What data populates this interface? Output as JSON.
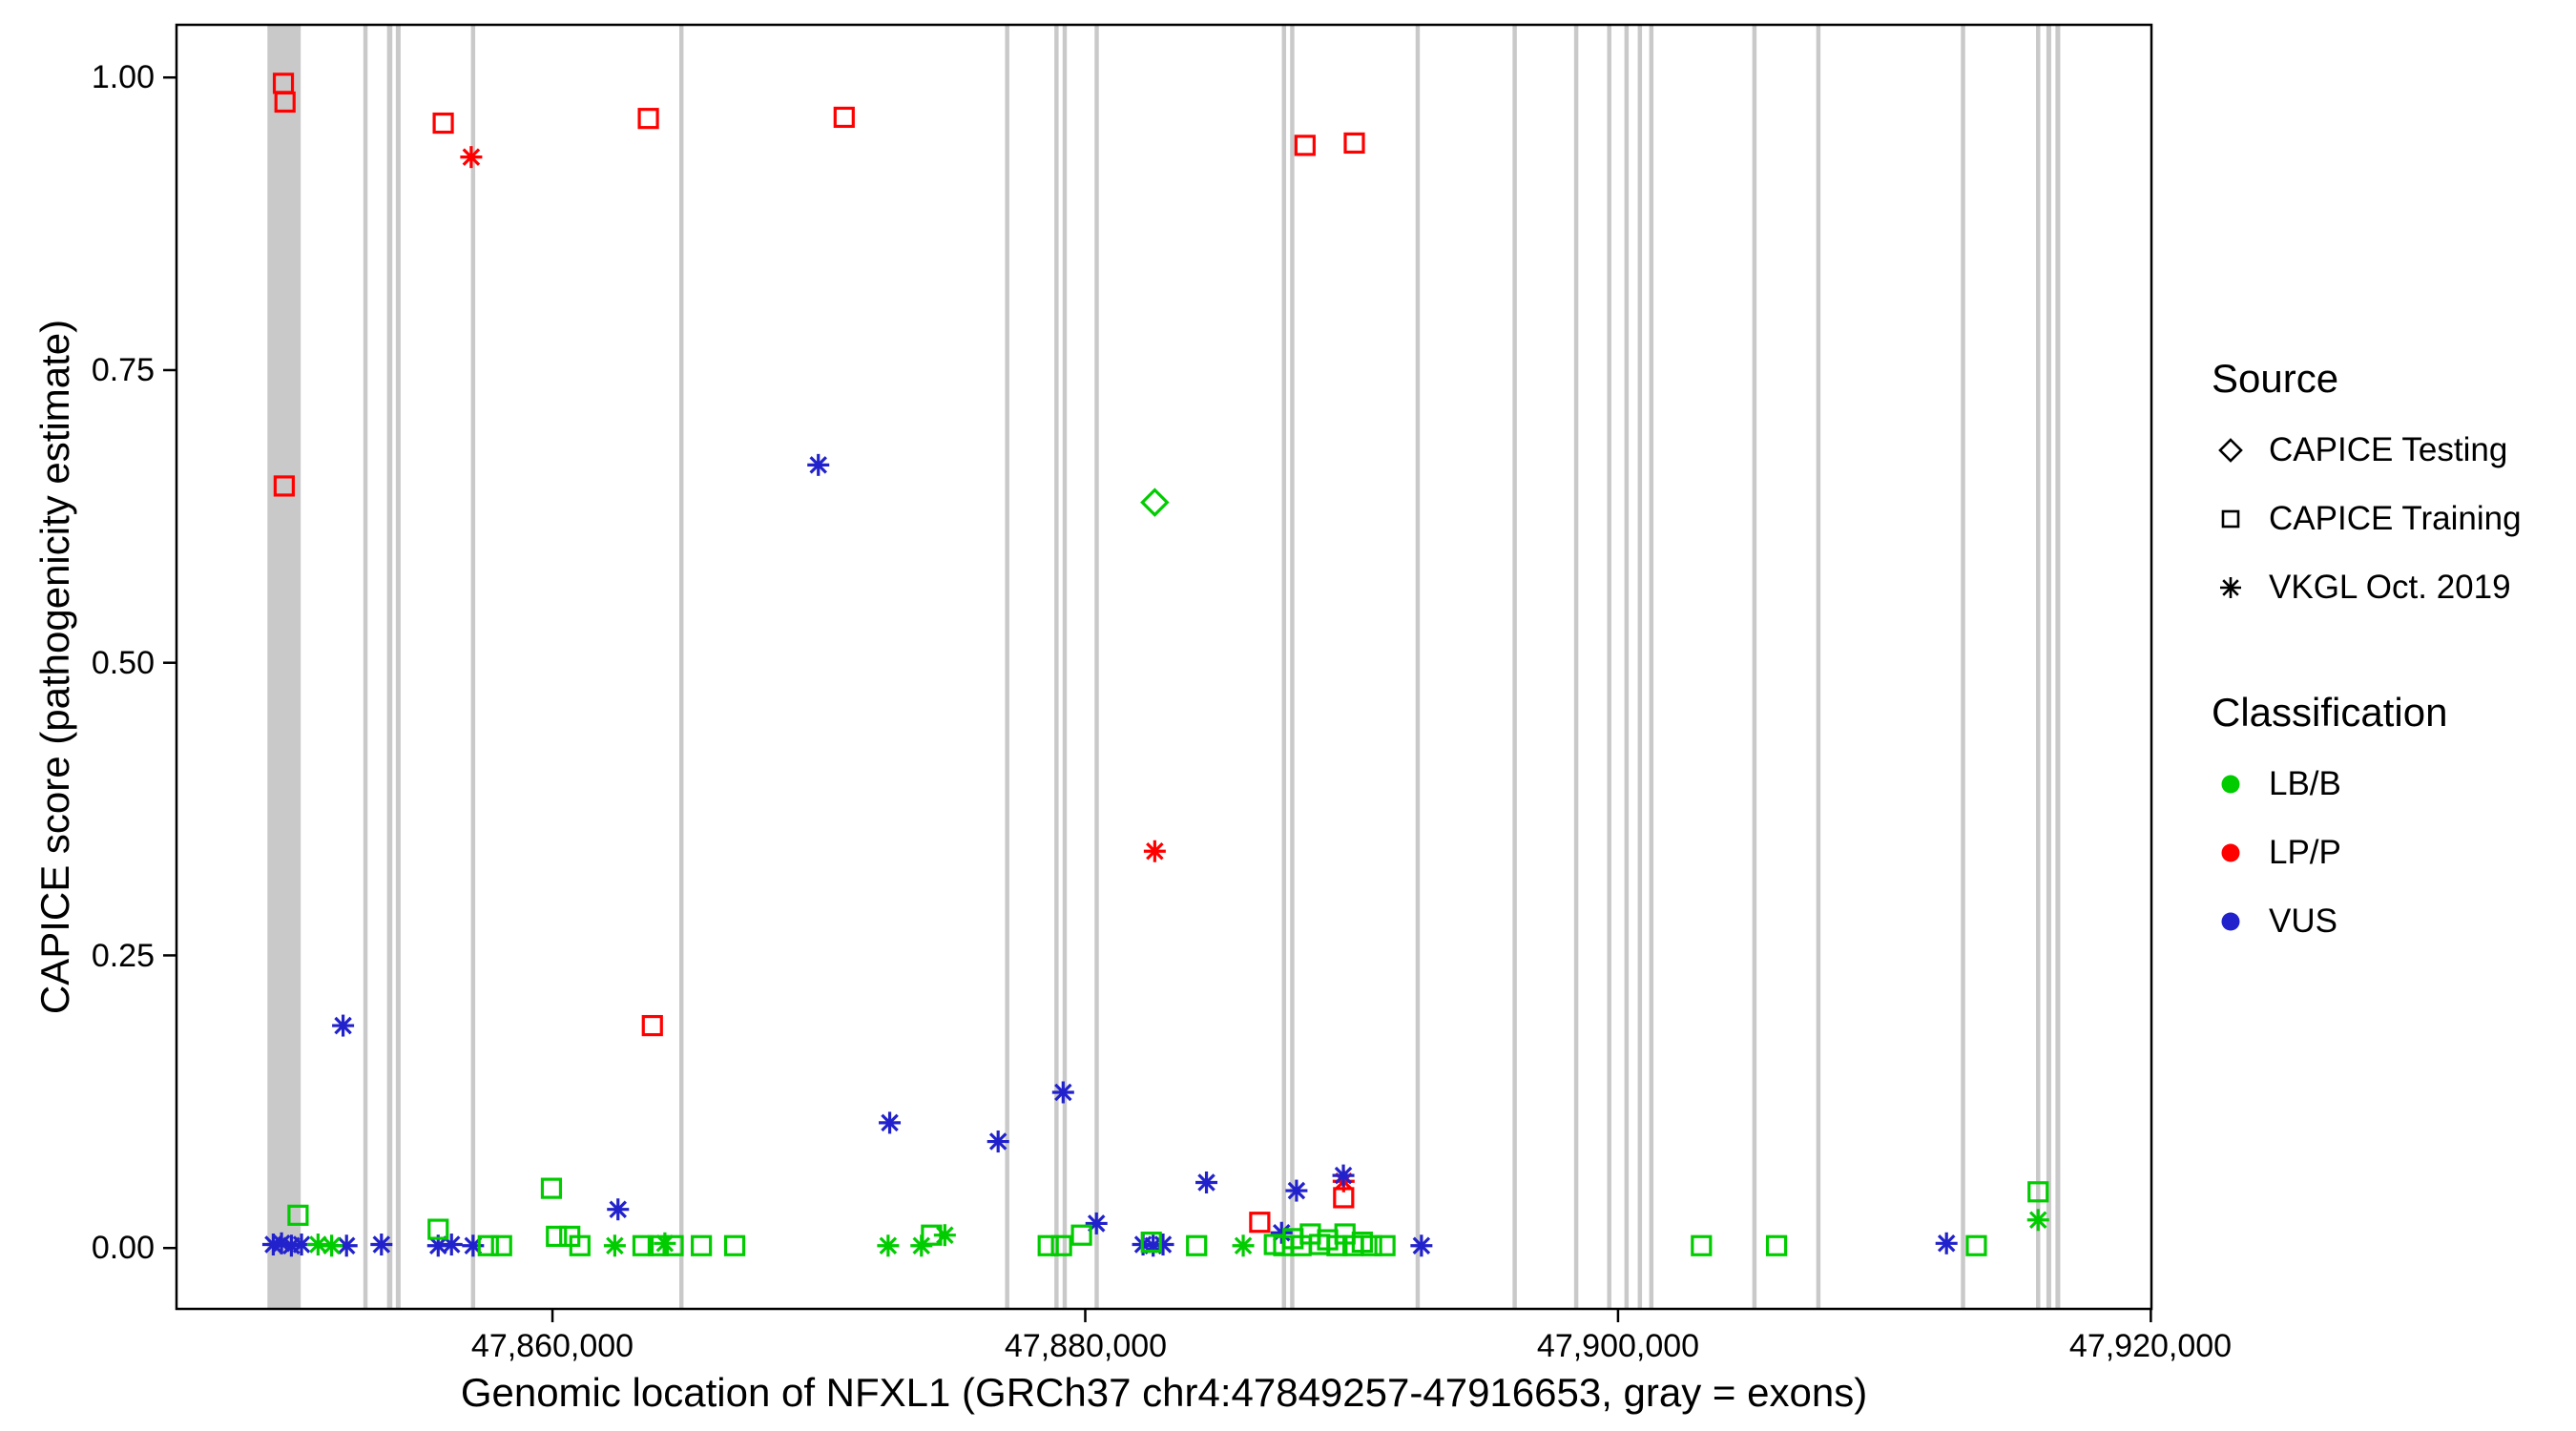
{
  "chart_data": {
    "type": "scatter",
    "title": "",
    "xlabel": "Genomic location of NFXL1 (GRCh37 chr4:47849257-47916653, gray = exons)",
    "ylabel": "CAPICE score (pathogenicity estimate)",
    "xlim": [
      47845887,
      47920023
    ],
    "ylim": [
      -0.052,
      1.045
    ],
    "x_ticks": [
      47860000,
      47880000,
      47900000,
      47920000
    ],
    "x_tick_labels": [
      "47,860,000",
      "47,880,000",
      "47,900,000",
      "47,920,000"
    ],
    "y_ticks": [
      0.0,
      0.25,
      0.5,
      0.75,
      1.0
    ],
    "y_tick_labels": [
      "0.00",
      "0.25",
      "0.50",
      "0.75",
      "1.00"
    ],
    "grid": "off",
    "legend_position": "right",
    "exon_color": "#C9C9C9",
    "exons": [
      [
        47849300,
        47850550
      ],
      [
        47852900,
        47853060
      ],
      [
        47853790,
        47853990
      ],
      [
        47854120,
        47854300
      ],
      [
        47856940,
        47857100
      ],
      [
        47864760,
        47864920
      ],
      [
        47876990,
        47877150
      ],
      [
        47878840,
        47879000
      ],
      [
        47879150,
        47879310
      ],
      [
        47880350,
        47880510
      ],
      [
        47887380,
        47887540
      ],
      [
        47887690,
        47887850
      ],
      [
        47892400,
        47892560
      ],
      [
        47896040,
        47896200
      ],
      [
        47898350,
        47898510
      ],
      [
        47899590,
        47899750
      ],
      [
        47900240,
        47900400
      ],
      [
        47900740,
        47900900
      ],
      [
        47901170,
        47901330
      ],
      [
        47905040,
        47905200
      ],
      [
        47907440,
        47907600
      ],
      [
        47912870,
        47913030
      ],
      [
        47915690,
        47915850
      ],
      [
        47916080,
        47916260
      ],
      [
        47916420,
        47916600
      ]
    ],
    "classification_colors": {
      "LB/B": "#00CC00",
      "LP/P": "#FF0000",
      "VUS": "#2222CC"
    },
    "source_shapes": {
      "CAPICE Testing": "diamond",
      "CAPICE Training": "square",
      "VKGL Oct. 2019": "asterisk"
    },
    "series": [
      {
        "source": "CAPICE Training",
        "classification": "LP/P",
        "points": [
          [
            47849900,
            0.995
          ],
          [
            47849960,
            0.979
          ],
          [
            47849930,
            0.651
          ],
          [
            47855900,
            0.961
          ],
          [
            47863600,
            0.965
          ],
          [
            47870950,
            0.966
          ],
          [
            47888250,
            0.942
          ],
          [
            47890100,
            0.944
          ],
          [
            47863750,
            0.19
          ],
          [
            47886550,
            0.022
          ],
          [
            47889700,
            0.043
          ]
        ]
      },
      {
        "source": "VKGL Oct. 2019",
        "classification": "LP/P",
        "points": [
          [
            47856950,
            0.932
          ],
          [
            47882610,
            0.339
          ],
          [
            47889700,
            0.057
          ]
        ]
      },
      {
        "source": "CAPICE Testing",
        "classification": "LB/B",
        "points": [
          [
            47882610,
            0.637
          ]
        ]
      },
      {
        "source": "VKGL Oct. 2019",
        "classification": "VUS",
        "points": [
          [
            47852140,
            0.19
          ],
          [
            47869980,
            0.669
          ],
          [
            47872660,
            0.107
          ],
          [
            47876730,
            0.091
          ],
          [
            47879170,
            0.133
          ],
          [
            47884550,
            0.056
          ],
          [
            47887930,
            0.049
          ],
          [
            47889690,
            0.062
          ],
          [
            47880420,
            0.021
          ],
          [
            47862460,
            0.033
          ],
          [
            47849520,
            0.003
          ],
          [
            47849830,
            0.004
          ],
          [
            47850200,
            0.002
          ],
          [
            47850580,
            0.003
          ],
          [
            47852270,
            0.002
          ],
          [
            47853580,
            0.003
          ],
          [
            47855710,
            0.002
          ],
          [
            47856210,
            0.003
          ],
          [
            47857020,
            0.002
          ],
          [
            47882170,
            0.003
          ],
          [
            47882550,
            0.002
          ],
          [
            47882920,
            0.003
          ],
          [
            47887370,
            0.013
          ],
          [
            47892620,
            0.002
          ],
          [
            47912330,
            0.004
          ]
        ]
      },
      {
        "source": "CAPICE Training",
        "classification": "LB/B",
        "points": [
          [
            47850450,
            0.028
          ],
          [
            47855710,
            0.016
          ],
          [
            47857590,
            0.002
          ],
          [
            47858090,
            0.002
          ],
          [
            47859960,
            0.051
          ],
          [
            47860150,
            0.01
          ],
          [
            47860650,
            0.01
          ],
          [
            47861030,
            0.002
          ],
          [
            47863400,
            0.002
          ],
          [
            47863970,
            0.002
          ],
          [
            47864530,
            0.002
          ],
          [
            47865590,
            0.002
          ],
          [
            47866840,
            0.002
          ],
          [
            47874230,
            0.011
          ],
          [
            47878610,
            0.002
          ],
          [
            47879110,
            0.002
          ],
          [
            47879860,
            0.011
          ],
          [
            47882480,
            0.005
          ],
          [
            47884180,
            0.002
          ],
          [
            47887100,
            0.003
          ],
          [
            47887450,
            0.002
          ],
          [
            47887800,
            0.008
          ],
          [
            47888100,
            0.002
          ],
          [
            47888450,
            0.012
          ],
          [
            47888800,
            0.003
          ],
          [
            47889100,
            0.007
          ],
          [
            47889450,
            0.002
          ],
          [
            47889750,
            0.012
          ],
          [
            47890050,
            0.002
          ],
          [
            47890400,
            0.005
          ],
          [
            47890750,
            0.002
          ],
          [
            47891250,
            0.002
          ],
          [
            47903130,
            0.002
          ],
          [
            47905950,
            0.002
          ],
          [
            47913450,
            0.002
          ],
          [
            47915770,
            0.048
          ]
        ]
      },
      {
        "source": "VKGL Oct. 2019",
        "classification": "LB/B",
        "points": [
          [
            47851200,
            0.003
          ],
          [
            47851710,
            0.002
          ],
          [
            47862340,
            0.002
          ],
          [
            47864220,
            0.004
          ],
          [
            47872600,
            0.002
          ],
          [
            47873850,
            0.002
          ],
          [
            47874730,
            0.011
          ],
          [
            47885930,
            0.002
          ],
          [
            47915770,
            0.024
          ]
        ]
      }
    ]
  },
  "legend": {
    "source_title": "Source",
    "source_items": [
      {
        "label": "CAPICE Testing",
        "shape": "diamond"
      },
      {
        "label": "CAPICE Training",
        "shape": "square"
      },
      {
        "label": "VKGL Oct. 2019",
        "shape": "asterisk"
      }
    ],
    "classification_title": "Classification",
    "classification_items": [
      {
        "label": "LB/B",
        "color": "#00CC00"
      },
      {
        "label": "LP/P",
        "color": "#FF0000"
      },
      {
        "label": "VUS",
        "color": "#2222CC"
      }
    ]
  }
}
